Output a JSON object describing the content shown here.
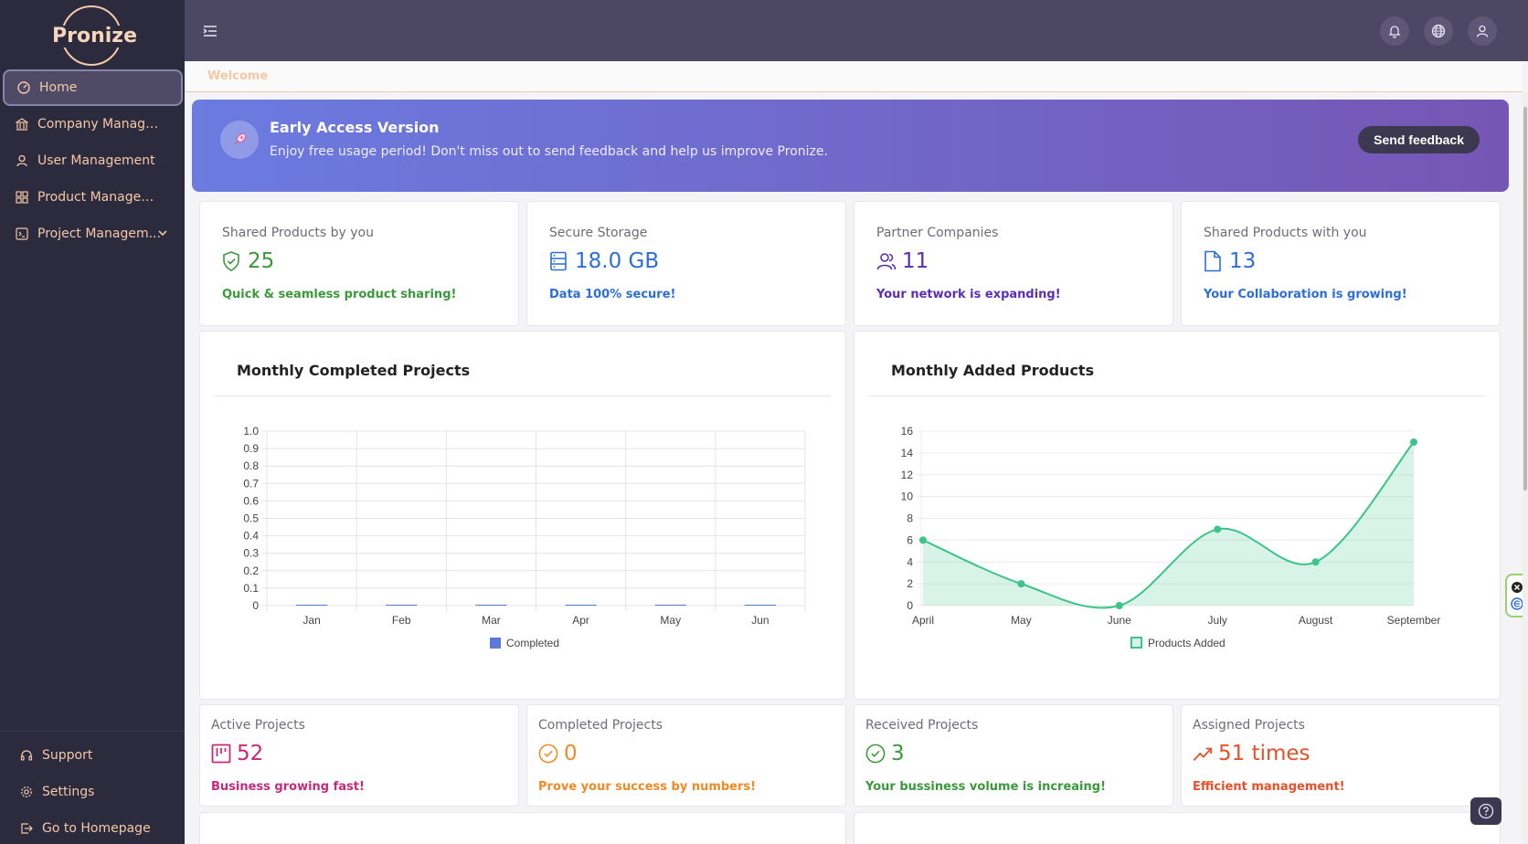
{
  "brand": {
    "logo_text": "Pronize"
  },
  "sidebar": {
    "items": [
      {
        "label": "Home",
        "icon": "dashboard-icon"
      },
      {
        "label": "Company Managem...",
        "icon": "bank-icon"
      },
      {
        "label": "User Management",
        "icon": "user-icon"
      },
      {
        "label": "Product Management",
        "icon": "grid-icon"
      },
      {
        "label": "Project Managem...",
        "icon": "terminal-icon"
      }
    ],
    "bottom_items": [
      {
        "label": "Support",
        "icon": "headset-icon"
      },
      {
        "label": "Settings",
        "icon": "gear-icon"
      },
      {
        "label": "Go to Homepage",
        "icon": "exit-icon"
      }
    ]
  },
  "breadcrumb": "Welcome",
  "banner": {
    "title": "Early Access Version",
    "text": "Enjoy free usage period! Don't miss out to send feedback and help us improve Pronize.",
    "button": "Send feedback"
  },
  "stats_top": [
    {
      "label": "Shared Products by you",
      "value": "25",
      "sub": "Quick & seamless product sharing!",
      "color": "#3a9a3a",
      "icon": "shield-check-icon"
    },
    {
      "label": "Secure Storage",
      "value": "18.0 GB",
      "sub": "Data 100% secure!",
      "color": "#2d6fd6",
      "icon": "server-icon"
    },
    {
      "label": "Partner Companies",
      "value": "11",
      "sub": "Your network is expanding!",
      "color": "#5a2fb5",
      "icon": "users-icon"
    },
    {
      "label": "Shared Products with you",
      "value": "13",
      "sub": "Your Collaboration is growing!",
      "color": "#2d6fd6",
      "icon": "file-icon"
    }
  ],
  "stats_bottom": [
    {
      "label": "Active Projects",
      "value": "52",
      "sub": "Business growing fast!",
      "color": "#c72a7a",
      "icon": "kanban-icon"
    },
    {
      "label": "Completed Projects",
      "value": "0",
      "sub": "Prove your success by numbers!",
      "color": "#f08a24",
      "icon": "check-circle-icon"
    },
    {
      "label": "Received Projects",
      "value": "3",
      "sub": "Your bussiness volume is increaing!",
      "color": "#3a9a3a",
      "icon": "check-circle-icon"
    },
    {
      "label": "Assigned Projects",
      "value": "51 times",
      "sub": "Efficient management!",
      "color": "#e8502a",
      "icon": "trend-up-icon"
    }
  ],
  "chart_data": [
    {
      "type": "bar",
      "title": "Monthly Completed Projects",
      "categories": [
        "Jan",
        "Feb",
        "Mar",
        "Apr",
        "May",
        "Jun"
      ],
      "series": [
        {
          "name": "Completed",
          "values": [
            0,
            0,
            0,
            0,
            0,
            0
          ],
          "color": "#5b7ad8"
        }
      ],
      "ylim": [
        0,
        1
      ],
      "yticks": [
        "0",
        "0.1",
        "0.2",
        "0.3",
        "0.4",
        "0.5",
        "0.6",
        "0.7",
        "0.8",
        "0.9",
        "1.0"
      ],
      "grid": true,
      "legend": "bottom"
    },
    {
      "type": "area",
      "title": "Monthly Added Products",
      "categories": [
        "April",
        "May",
        "June",
        "July",
        "August",
        "September"
      ],
      "series": [
        {
          "name": "Products Added",
          "values": [
            6,
            2,
            0,
            7,
            4,
            15
          ],
          "color": "#3cc48a"
        }
      ],
      "ylim": [
        0,
        16
      ],
      "yticks": [
        "0",
        "2",
        "4",
        "6",
        "8",
        "10",
        "12",
        "14",
        "16"
      ],
      "grid": true,
      "legend": "bottom"
    }
  ]
}
